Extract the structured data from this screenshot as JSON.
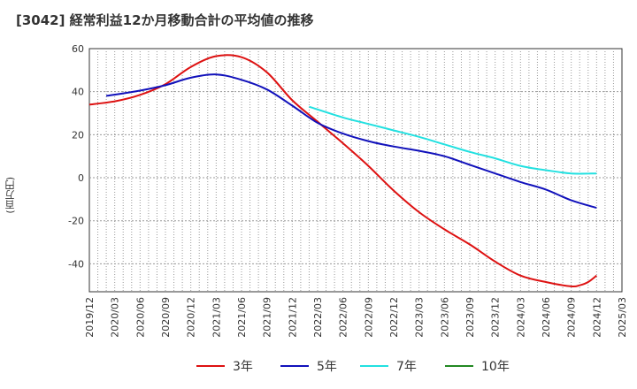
{
  "chart_data": {
    "type": "line",
    "title": "[3042]  経常利益12か月移動合計の平均値の推移",
    "ylabel": "(百万円)",
    "xlabel": "",
    "ylim": [
      -53,
      60
    ],
    "yticks": [
      60,
      40,
      20,
      0,
      -20,
      -40
    ],
    "x_tick_labels": [
      "2019/12",
      "2020/03",
      "2020/06",
      "2020/09",
      "2020/12",
      "2021/03",
      "2021/06",
      "2021/09",
      "2021/12",
      "2022/03",
      "2022/06",
      "2022/09",
      "2022/12",
      "2023/03",
      "2023/06",
      "2023/09",
      "2023/12",
      "2024/03",
      "2024/06",
      "2024/09",
      "2024/12",
      "2025/03"
    ],
    "grid": true,
    "legend_position": "bottom",
    "series": [
      {
        "name": "3年",
        "color": "#dd1111",
        "points": [
          [
            "2019/12",
            34
          ],
          [
            "2020/03",
            35.5
          ],
          [
            "2020/06",
            38.5
          ],
          [
            "2020/09",
            43.5
          ],
          [
            "2020/12",
            51.5
          ],
          [
            "2021/03",
            56.5
          ],
          [
            "2021/06",
            56
          ],
          [
            "2021/09",
            49
          ],
          [
            "2021/12",
            36
          ],
          [
            "2022/03",
            26
          ],
          [
            "2022/06",
            16
          ],
          [
            "2022/09",
            5.5
          ],
          [
            "2022/12",
            -6
          ],
          [
            "2023/03",
            -16
          ],
          [
            "2023/06",
            -24
          ],
          [
            "2023/09",
            -31
          ],
          [
            "2023/12",
            -39
          ],
          [
            "2024/03",
            -45.5
          ],
          [
            "2024/06",
            -48.5
          ],
          [
            "2024/09",
            -50.5
          ],
          [
            "2024/10",
            -50
          ],
          [
            "2024/11",
            -48.5
          ],
          [
            "2024/12",
            -45.5
          ]
        ]
      },
      {
        "name": "5年",
        "color": "#1111bb",
        "points": [
          [
            "2020/02",
            38
          ],
          [
            "2020/06",
            40.5
          ],
          [
            "2020/09",
            43
          ],
          [
            "2020/12",
            46.5
          ],
          [
            "2021/03",
            48
          ],
          [
            "2021/06",
            45.5
          ],
          [
            "2021/09",
            41
          ],
          [
            "2021/12",
            33.5
          ],
          [
            "2022/03",
            25.5
          ],
          [
            "2022/06",
            20.5
          ],
          [
            "2022/09",
            17
          ],
          [
            "2022/12",
            14.5
          ],
          [
            "2023/03",
            12.5
          ],
          [
            "2023/06",
            10
          ],
          [
            "2023/09",
            6
          ],
          [
            "2023/12",
            2
          ],
          [
            "2024/03",
            -2
          ],
          [
            "2024/06",
            -5.5
          ],
          [
            "2024/09",
            -10.5
          ],
          [
            "2024/12",
            -14
          ]
        ]
      },
      {
        "name": "7年",
        "color": "#22e0e0",
        "points": [
          [
            "2022/02",
            33
          ],
          [
            "2022/06",
            28
          ],
          [
            "2022/09",
            25
          ],
          [
            "2022/12",
            22
          ],
          [
            "2023/03",
            19
          ],
          [
            "2023/06",
            15.5
          ],
          [
            "2023/09",
            12
          ],
          [
            "2023/12",
            9
          ],
          [
            "2024/03",
            5.5
          ],
          [
            "2024/06",
            3.5
          ],
          [
            "2024/09",
            2
          ],
          [
            "2024/12",
            2
          ]
        ]
      },
      {
        "name": "10年",
        "color": "#228822",
        "points": []
      }
    ]
  }
}
